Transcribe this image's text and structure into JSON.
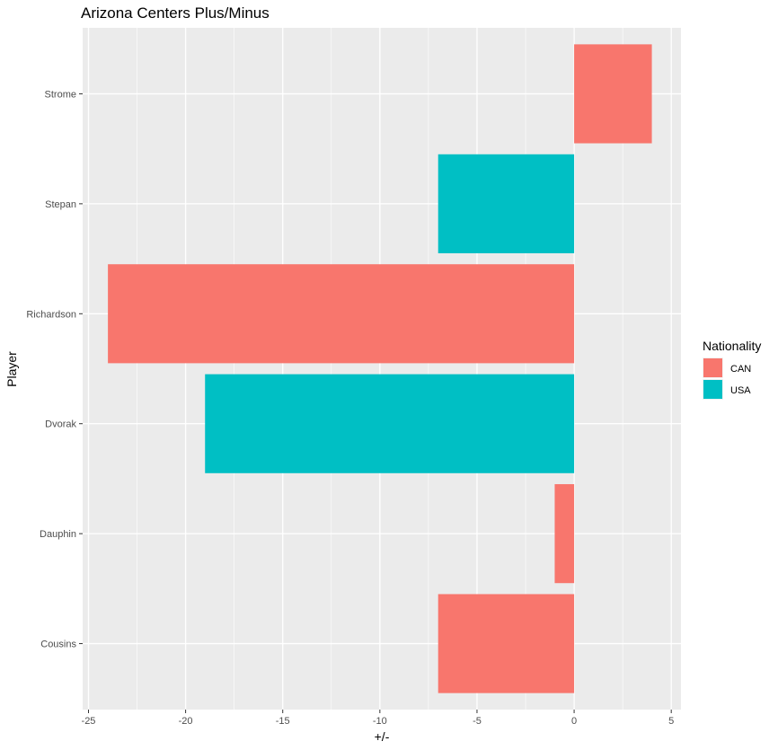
{
  "chart_data": {
    "type": "bar",
    "orientation": "horizontal",
    "title": "Arizona Centers Plus/Minus",
    "xlabel": "+/-",
    "ylabel": "Player",
    "xlim": [
      -25.3,
      5.5
    ],
    "x_ticks": [
      -25,
      -20,
      -15,
      -10,
      -5,
      0,
      5
    ],
    "x_tick_labels": [
      "-25",
      "-20",
      "-15",
      "-10",
      "-5",
      "0",
      "5"
    ],
    "categories": [
      "Cousins",
      "Dauphin",
      "Dvorak",
      "Richardson",
      "Stepan",
      "Strome"
    ],
    "values": [
      -7,
      -1,
      -19,
      -24,
      -7,
      4
    ],
    "groups": [
      "CAN",
      "CAN",
      "USA",
      "CAN",
      "USA",
      "CAN"
    ],
    "grid": true,
    "legend": {
      "title": "Nationality",
      "placement": "right",
      "entries": [
        {
          "label": "CAN",
          "color": "#F8766D"
        },
        {
          "label": "USA",
          "color": "#00BFC4"
        }
      ]
    },
    "colors": {
      "CAN": "#F8766D",
      "USA": "#00BFC4",
      "panel_background": "#EBEBEB",
      "grid": "#FFFFFF"
    }
  }
}
